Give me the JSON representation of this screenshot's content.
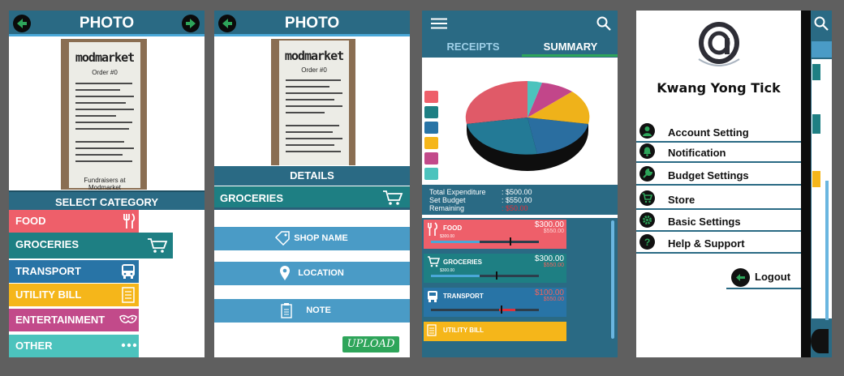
{
  "photo_screen": {
    "title": "PHOTO",
    "select_category": "SELECT CATEGORY",
    "categories": [
      {
        "label": "FOOD",
        "color": "#ee5f6a",
        "icon": "fork-knife-icon"
      },
      {
        "label": "GROCERIES",
        "color": "#1e7f83",
        "icon": "cart-icon"
      },
      {
        "label": "TRANSPORT",
        "color": "#2874a6",
        "icon": "bus-icon"
      },
      {
        "label": "UTILITY BILL",
        "color": "#f5b61a",
        "icon": "bill-icon"
      },
      {
        "label": "ENTERTAINMENT",
        "color": "#c24a8a",
        "icon": "mask-icon"
      },
      {
        "label": "OTHER",
        "color": "#4cc3bd",
        "icon": "more-icon"
      }
    ]
  },
  "receipt": {
    "logo": "modmarket",
    "order": "Order #0",
    "footer": "Fundraisers at Modmarket"
  },
  "details_screen": {
    "title": "PHOTO",
    "details": "DETAILS",
    "category": "GROCERIES",
    "shop_name": "SHOP NAME",
    "location": "LOCATION",
    "note": "NOTE",
    "upload": "UPLOAD"
  },
  "summary_screen": {
    "tabs": [
      "RECEIPTS",
      "SUMMARY"
    ],
    "total_label": "Total Expenditure",
    "total_value": ": $500.00",
    "budget_label": "Set Budget",
    "budget_value": ": $550.00",
    "remaining_label": "Remaining",
    "remaining_value": ": $50.00",
    "pie_share": {
      "Food": 0.38,
      "Groceries": 0.22,
      "Transport": 0.18,
      "Utility Bill": 0.11,
      "Entertainment": 0.07,
      "Other": 0.04
    },
    "expenses": [
      {
        "name": "FOOD",
        "amount": "$300.00",
        "sub": "$550.00",
        "left_label": "$300.00",
        "fill": 0.45,
        "marker": 0.73,
        "color": "#ee5f6a",
        "sub_color": "#ffd4d4",
        "icon": "fork-knife-icon"
      },
      {
        "name": "GROCERIES",
        "amount": "$300.00",
        "sub": "$550.00",
        "left_label": "$300.00",
        "fill": 0.45,
        "marker": 0.6,
        "color": "#1e7f83",
        "sub_color": "#f0635e",
        "icon": "cart-icon"
      },
      {
        "name": "TRANSPORT",
        "amount": "$100.00",
        "sub": "$550.00",
        "left_label": "",
        "fill": 0.0,
        "marker": 0.65,
        "color": "#2874a6",
        "sub_color": "#f0635e",
        "icon": "bus-icon"
      },
      {
        "name": "UTILITY BILL",
        "amount": "",
        "sub": "",
        "left_label": "",
        "fill": 0,
        "marker": 0,
        "color": "#f5b61a",
        "sub_color": "#fff",
        "icon": "bill-icon"
      }
    ]
  },
  "menu_screen": {
    "user_name": "Kwang Yong Tick",
    "items": [
      {
        "label": "Account Setting",
        "icon": "user-icon"
      },
      {
        "label": "Notification",
        "icon": "bell-icon"
      },
      {
        "label": "Budget Settings",
        "icon": "wrench-icon"
      },
      {
        "label": "Store",
        "icon": "cart-icon"
      },
      {
        "label": "Basic Settings",
        "icon": "gear-icon"
      },
      {
        "label": "Help & Support",
        "icon": "help-icon"
      }
    ],
    "logout": "Logout"
  }
}
